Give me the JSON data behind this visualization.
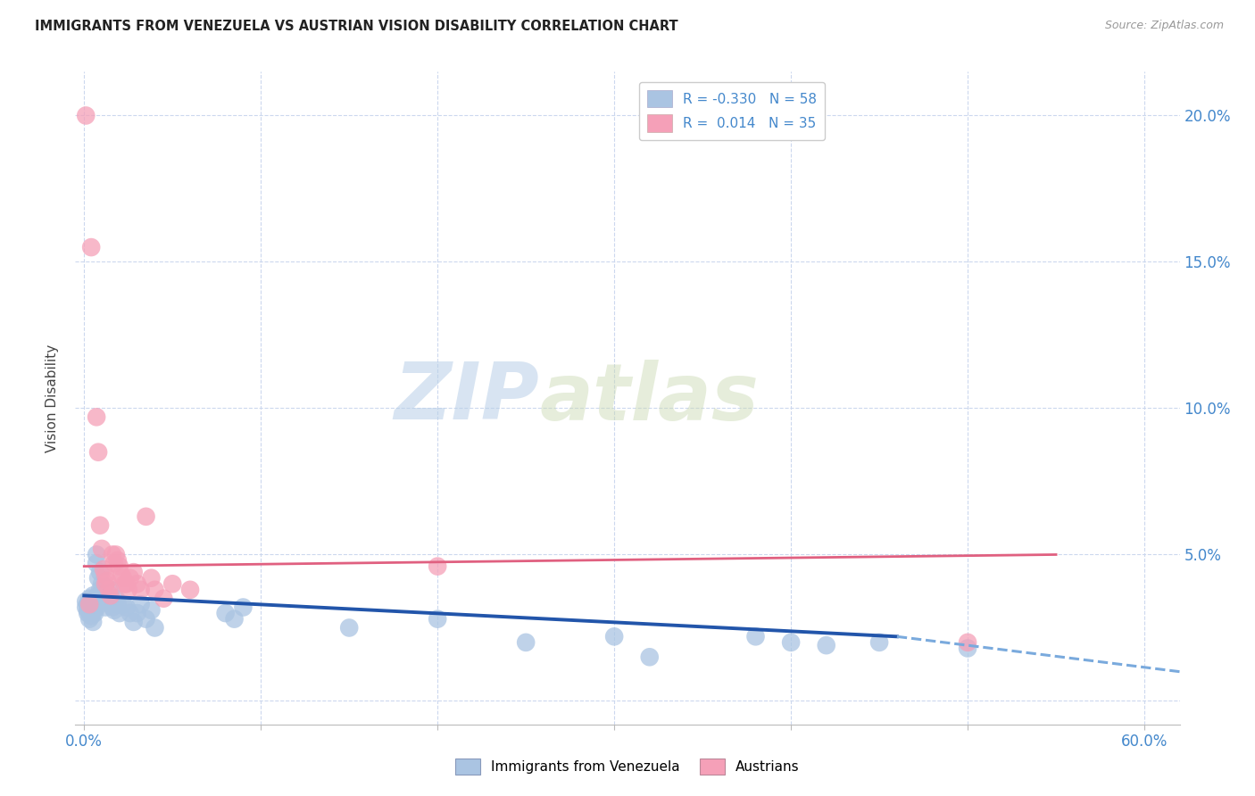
{
  "title": "IMMIGRANTS FROM VENEZUELA VS AUSTRIAN VISION DISABILITY CORRELATION CHART",
  "source": "Source: ZipAtlas.com",
  "ylabel": "Vision Disability",
  "legend_blue_r": "-0.330",
  "legend_blue_n": "58",
  "legend_pink_r": "0.014",
  "legend_pink_n": "35",
  "legend_label_blue": "Immigrants from Venezuela",
  "legend_label_pink": "Austrians",
  "blue_color": "#aac4e2",
  "pink_color": "#f5a0b8",
  "trendline_blue_solid": "#2255aa",
  "trendline_blue_dashed": "#7aaadd",
  "trendline_pink_solid": "#e06080",
  "background": "#ffffff",
  "grid_color": "#ccd8ee",
  "watermark_zip": "ZIP",
  "watermark_atlas": "atlas",
  "xlim": [
    -0.005,
    0.62
  ],
  "ylim": [
    -0.008,
    0.215
  ],
  "yticks": [
    0.0,
    0.05,
    0.1,
    0.15,
    0.2
  ],
  "ytick_labels": [
    "",
    "5.0%",
    "10.0%",
    "15.0%",
    "20.0%"
  ],
  "xticks": [
    0.0,
    0.1,
    0.2,
    0.3,
    0.4,
    0.5,
    0.6
  ],
  "xtick_labels": [
    "0.0%",
    "",
    "",
    "",
    "",
    "",
    "60.0%"
  ],
  "blue_scatter": [
    [
      0.001,
      0.034
    ],
    [
      0.001,
      0.032
    ],
    [
      0.002,
      0.033
    ],
    [
      0.002,
      0.031
    ],
    [
      0.002,
      0.03
    ],
    [
      0.003,
      0.035
    ],
    [
      0.003,
      0.032
    ],
    [
      0.003,
      0.028
    ],
    [
      0.004,
      0.034
    ],
    [
      0.004,
      0.031
    ],
    [
      0.004,
      0.029
    ],
    [
      0.005,
      0.036
    ],
    [
      0.005,
      0.033
    ],
    [
      0.005,
      0.03
    ],
    [
      0.005,
      0.027
    ],
    [
      0.006,
      0.035
    ],
    [
      0.006,
      0.032
    ],
    [
      0.006,
      0.03
    ],
    [
      0.007,
      0.05
    ],
    [
      0.007,
      0.047
    ],
    [
      0.007,
      0.032
    ],
    [
      0.008,
      0.042
    ],
    [
      0.008,
      0.036
    ],
    [
      0.009,
      0.044
    ],
    [
      0.009,
      0.038
    ],
    [
      0.01,
      0.04
    ],
    [
      0.011,
      0.034
    ],
    [
      0.012,
      0.032
    ],
    [
      0.013,
      0.035
    ],
    [
      0.014,
      0.034
    ],
    [
      0.015,
      0.038
    ],
    [
      0.016,
      0.032
    ],
    [
      0.017,
      0.031
    ],
    [
      0.018,
      0.035
    ],
    [
      0.019,
      0.033
    ],
    [
      0.02,
      0.03
    ],
    [
      0.022,
      0.033
    ],
    [
      0.024,
      0.032
    ],
    [
      0.026,
      0.03
    ],
    [
      0.028,
      0.027
    ],
    [
      0.03,
      0.03
    ],
    [
      0.032,
      0.033
    ],
    [
      0.035,
      0.028
    ],
    [
      0.038,
      0.031
    ],
    [
      0.04,
      0.025
    ],
    [
      0.08,
      0.03
    ],
    [
      0.085,
      0.028
    ],
    [
      0.09,
      0.032
    ],
    [
      0.15,
      0.025
    ],
    [
      0.2,
      0.028
    ],
    [
      0.25,
      0.02
    ],
    [
      0.3,
      0.022
    ],
    [
      0.32,
      0.015
    ],
    [
      0.38,
      0.022
    ],
    [
      0.4,
      0.02
    ],
    [
      0.42,
      0.019
    ],
    [
      0.45,
      0.02
    ],
    [
      0.5,
      0.018
    ]
  ],
  "pink_scatter": [
    [
      0.001,
      0.2
    ],
    [
      0.004,
      0.155
    ],
    [
      0.007,
      0.097
    ],
    [
      0.008,
      0.085
    ],
    [
      0.009,
      0.06
    ],
    [
      0.01,
      0.052
    ],
    [
      0.011,
      0.045
    ],
    [
      0.012,
      0.043
    ],
    [
      0.012,
      0.04
    ],
    [
      0.013,
      0.041
    ],
    [
      0.014,
      0.038
    ],
    [
      0.015,
      0.036
    ],
    [
      0.016,
      0.05
    ],
    [
      0.017,
      0.047
    ],
    [
      0.018,
      0.05
    ],
    [
      0.019,
      0.048
    ],
    [
      0.02,
      0.046
    ],
    [
      0.021,
      0.043
    ],
    [
      0.022,
      0.042
    ],
    [
      0.023,
      0.04
    ],
    [
      0.024,
      0.04
    ],
    [
      0.025,
      0.038
    ],
    [
      0.026,
      0.042
    ],
    [
      0.028,
      0.044
    ],
    [
      0.03,
      0.04
    ],
    [
      0.032,
      0.038
    ],
    [
      0.035,
      0.063
    ],
    [
      0.038,
      0.042
    ],
    [
      0.04,
      0.038
    ],
    [
      0.045,
      0.035
    ],
    [
      0.05,
      0.04
    ],
    [
      0.06,
      0.038
    ],
    [
      0.2,
      0.046
    ],
    [
      0.5,
      0.02
    ],
    [
      0.003,
      0.033
    ]
  ],
  "blue_trend_x0": 0.0,
  "blue_trend_x_solid_end": 0.46,
  "blue_trend_x_dashed_end": 0.62,
  "blue_trend_y_start": 0.036,
  "blue_trend_y_solid_end": 0.022,
  "blue_trend_y_dashed_end": 0.01,
  "pink_trend_x0": 0.0,
  "pink_trend_x_end": 0.55,
  "pink_trend_y_start": 0.046,
  "pink_trend_y_end": 0.05
}
